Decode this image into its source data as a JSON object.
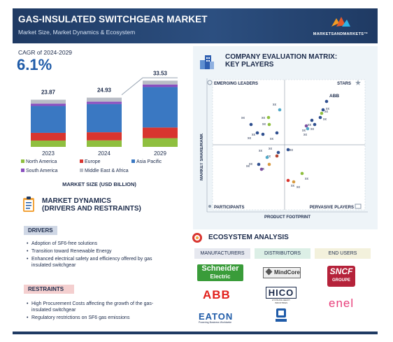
{
  "header": {
    "title": "GAS-INSULATED SWITCHGEAR MARKET",
    "subtitle": "Market Size, Market Dynamics & Ecosystem",
    "brand": "MARKETSANDMARKETS™"
  },
  "cagr": {
    "label": "CAGR of 2024-2029",
    "value": "6.1%"
  },
  "chart_data": {
    "type": "bar",
    "categories": [
      "2023",
      "2024",
      "2029"
    ],
    "totals": [
      "23.87",
      "24.93",
      "33.53"
    ],
    "total_values": [
      23.87,
      24.93,
      33.53
    ],
    "series": [
      {
        "name": "North America",
        "color": "#8fbf3f",
        "values": [
          3.2,
          3.3,
          4.4
        ]
      },
      {
        "name": "Europe",
        "color": "#d8352f",
        "values": [
          3.9,
          4.1,
          5.4
        ]
      },
      {
        "name": "Asia Pacific",
        "color": "#3a78c2",
        "values": [
          13.6,
          14.3,
          20.5
        ]
      },
      {
        "name": "South America",
        "color": "#8a4fbf",
        "values": [
          1.2,
          1.2,
          1.3
        ]
      },
      {
        "name": "Middle East & Africa",
        "color": "#b9bdc6",
        "values": [
          1.97,
          2.03,
          1.93
        ]
      }
    ],
    "xlabel": "MARKET SIZE (USD BILLION)"
  },
  "legend": {
    "na": "North America",
    "eu": "Europe",
    "apac": "Asia Pacific",
    "sa": "South America",
    "mea": "Middle East & Africa"
  },
  "dynamics": {
    "title_line1": "MARKET DYNAMICS",
    "title_line2": "(DRIVERS AND RESTRAINTS)",
    "drivers_label": "DRIVERS",
    "drivers": [
      "Adoption of SF6-free solutions",
      "Transition toward Renewable Energy",
      "Enhanced electrical safety and efficiency offered by gas insulated switchgear"
    ],
    "restraints_label": "RESTRAINTS",
    "restraints": [
      "High Procurement Costs affecting the growth of the gas-insulated switchgear",
      "Regulatory restrictions on SF6 gas emissions"
    ]
  },
  "matrix": {
    "title_line1": "COMPANY EVALUATION MATRIX:",
    "title_line2": "KEY PLAYERS",
    "q_emerging": "EMERGING LEADERS",
    "q_stars": "STARS",
    "q_participants": "PARTICIPANTS",
    "q_pervasive": "PERVASIVE PLAYERS",
    "y_axis": "MARKET SHARE/RANK",
    "x_axis": "PRODUCT FOOTPRINT",
    "highlight": "ABB",
    "placeholder": "xx",
    "dots": [
      {
        "color": "#2f4f8f",
        "label": "ABB"
      },
      {
        "color": "#2f4f8f",
        "label": "xx"
      },
      {
        "color": "#8fbf3f",
        "label": "xx"
      },
      {
        "color": "#2f4f8f",
        "label": "xx"
      },
      {
        "color": "#2f4f8f",
        "label": "xx"
      },
      {
        "color": "#2f4f8f",
        "label": "xx"
      },
      {
        "color": "#7c4f9f",
        "label": "xx"
      },
      {
        "color": "#4fa8c8",
        "label": "xx"
      },
      {
        "color": "#4fa8c8",
        "label": "xx"
      },
      {
        "color": "#8fbf3f",
        "label": "xx"
      },
      {
        "color": "#2f4f8f",
        "label": "xx"
      },
      {
        "color": "#8fbf3f",
        "label": "xx"
      },
      {
        "color": "#2f4f8f",
        "label": "xx"
      },
      {
        "color": "#2f4f8f",
        "label": "xx"
      },
      {
        "color": "#2f4f8f",
        "label": "xx"
      },
      {
        "color": "#2f4f8f",
        "label": "xx"
      },
      {
        "color": "#2f4f8f",
        "label": "xx"
      },
      {
        "color": "#b5442f",
        "label": "xx"
      },
      {
        "color": "#4fa8c8",
        "label": "xx"
      },
      {
        "color": "#d89a3f",
        "label": "xx"
      },
      {
        "color": "#7c4f9f",
        "label": "xx"
      },
      {
        "color": "#2f4f8f",
        "label": "xx"
      },
      {
        "color": "#d8352f",
        "label": "xx"
      },
      {
        "color": "#8fbf3f",
        "label": "xx"
      },
      {
        "color": "#d89a3f",
        "label": "xx"
      }
    ]
  },
  "ecosystem": {
    "title": "ECOSYSTEM ANALYSIS",
    "manufacturers": "MANUFACTURERS",
    "distributors": "DISTRIBUTORS",
    "end_users": "END USERS",
    "logos": {
      "schneider": "Schneider",
      "schneider_sub": "Electric",
      "abb": "ABB",
      "eaton": "EATON",
      "eaton_sub": "Powering Business Worldwide",
      "mindcore": "MindCore",
      "hico": "HICO",
      "hico_sub": "HYOSUNG HEAVY INDUSTRIES",
      "sncf": "SNCF",
      "sncf_sub": "GROUPE",
      "enel": "enel"
    }
  }
}
